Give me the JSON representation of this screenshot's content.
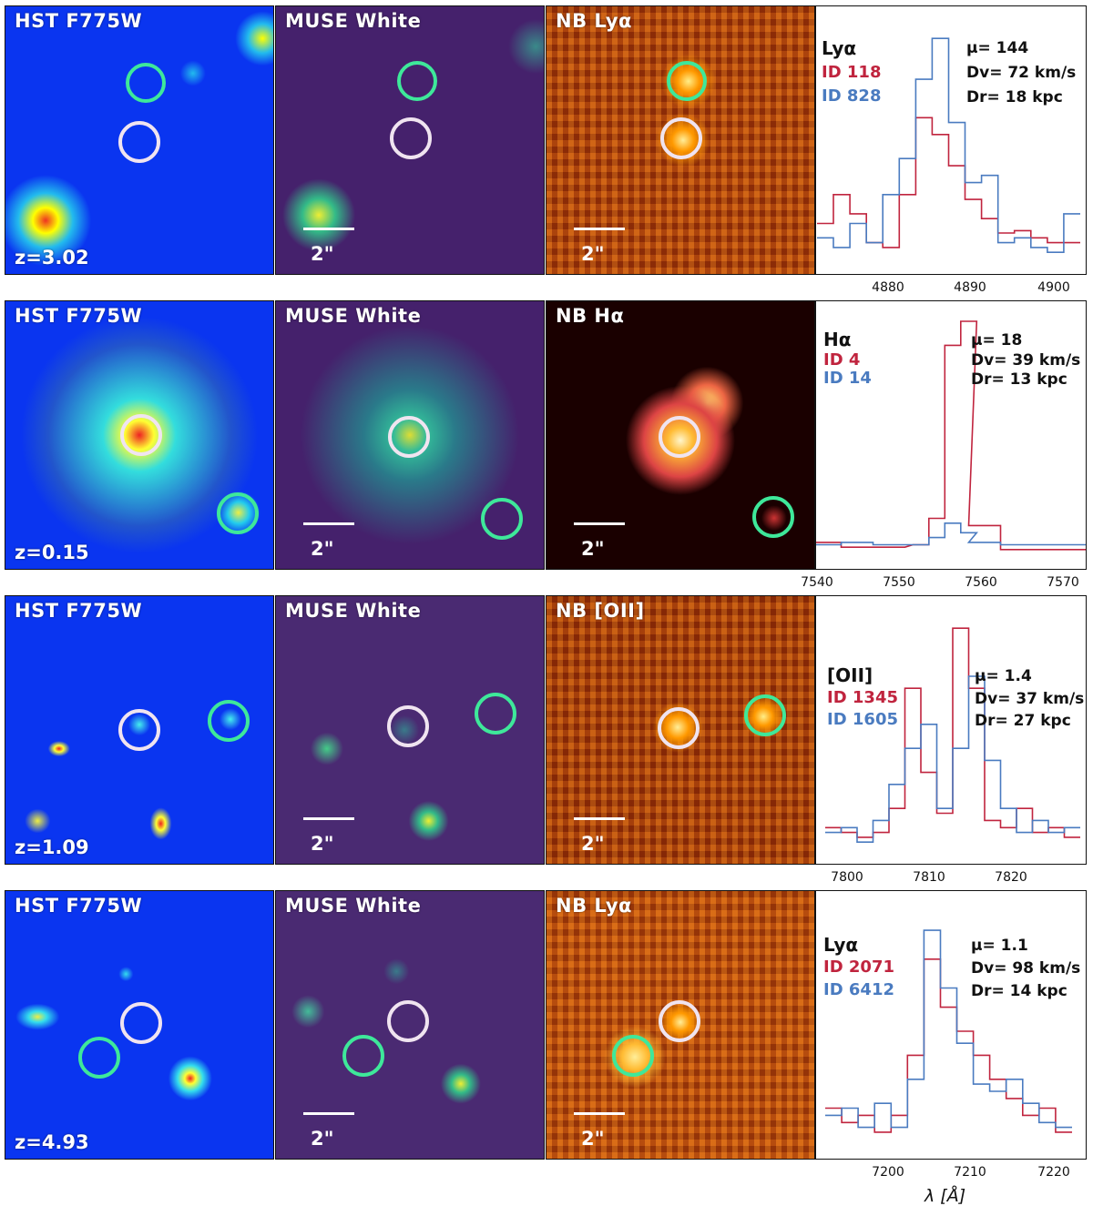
{
  "rows": [
    {
      "hst_label": "HST F775W",
      "muse_label": "MUSE White",
      "nb_label": "NB Lyα",
      "z": "z=3.02",
      "scale": "2\"",
      "line": "Lyα",
      "id_a": "ID 118",
      "id_b": "ID 828",
      "mu": "μ= 144",
      "dv": "Dv= 72 km/s",
      "dr": "Dr= 18 kpc",
      "ticks": [
        "4880",
        "4890",
        "4900"
      ]
    },
    {
      "hst_label": "HST F775W",
      "muse_label": "MUSE White",
      "nb_label": "NB Hα",
      "z": "z=0.15",
      "scale": "2\"",
      "line": "Hα",
      "id_a": "ID 4",
      "id_b": "ID 14",
      "mu": "μ= 18",
      "dv": "Dv= 39 km/s",
      "dr": "Dr= 13 kpc",
      "ticks": [
        "7540",
        "7550",
        "7560",
        "7570"
      ]
    },
    {
      "hst_label": "HST F775W",
      "muse_label": "MUSE White",
      "nb_label": "NB [OII]",
      "z": "z=1.09",
      "scale": "2\"",
      "line": "[OII]",
      "id_a": "ID 1345",
      "id_b": "ID 1605",
      "mu": "μ= 1.4",
      "dv": "Dv= 37 km/s",
      "dr": "Dr= 27 kpc",
      "ticks": [
        "7800",
        "7810",
        "7820"
      ]
    },
    {
      "hst_label": "HST F775W",
      "muse_label": "MUSE White",
      "nb_label": "NB Lyα",
      "z": "z=4.93",
      "scale": "2\"",
      "line": "Lyα",
      "id_a": "ID 2071",
      "id_b": "ID 6412",
      "mu": "μ= 1.1",
      "dv": "Dv= 98 km/s",
      "dr": "Dr= 14 kpc",
      "ticks": [
        "7200",
        "7210",
        "7220"
      ]
    }
  ],
  "xlabel": "λ [Å]",
  "colors": {
    "id_a": "#c0243e",
    "id_b": "#4a7bc0",
    "circle_a": "#f0e4f0",
    "circle_b": "#3ee89a"
  },
  "chart_data": [
    {
      "type": "line",
      "title": "Lyα ID 118 / ID 828",
      "xlabel": "λ [Å]",
      "xlim": [
        4873,
        4904
      ],
      "series": [
        {
          "name": "ID 118",
          "x": [
            4873,
            4875,
            4877,
            4879,
            4881,
            4883,
            4885,
            4887,
            4889,
            4891,
            4893,
            4895,
            4897,
            4899,
            4901,
            4903
          ],
          "values": [
            0.18,
            0.3,
            0.22,
            0.1,
            0.08,
            0.3,
            0.62,
            0.55,
            0.42,
            0.28,
            0.2,
            0.14,
            0.15,
            0.12,
            0.1,
            0.1
          ]
        },
        {
          "name": "ID 828",
          "x": [
            4873,
            4875,
            4877,
            4879,
            4881,
            4883,
            4885,
            4887,
            4889,
            4891,
            4893,
            4895,
            4897,
            4899,
            4901,
            4903
          ],
          "values": [
            0.12,
            0.08,
            0.18,
            0.1,
            0.3,
            0.45,
            0.78,
            0.95,
            0.6,
            0.35,
            0.38,
            0.1,
            0.12,
            0.08,
            0.06,
            0.22
          ]
        }
      ]
    },
    {
      "type": "line",
      "title": "Hα ID 4 / ID 14",
      "xlabel": "λ [Å]",
      "xlim": [
        7540,
        7572
      ],
      "series": [
        {
          "name": "ID 4",
          "x": [
            7540,
            7544,
            7548,
            7552,
            7554,
            7556,
            7558,
            7560,
            7564,
            7568,
            7572
          ],
          "values": [
            0.08,
            0.06,
            0.06,
            0.07,
            0.18,
            0.9,
            1.0,
            0.15,
            0.05,
            0.05,
            0.05
          ]
        },
        {
          "name": "ID 14",
          "x": [
            7540,
            7544,
            7548,
            7552,
            7554,
            7556,
            7558,
            7560,
            7564,
            7568,
            7572
          ],
          "values": [
            0.07,
            0.08,
            0.07,
            0.07,
            0.1,
            0.16,
            0.12,
            0.08,
            0.07,
            0.07,
            0.07
          ]
        }
      ]
    },
    {
      "type": "line",
      "title": "[OII] ID 1345 / ID 1605",
      "xlabel": "λ [Å]",
      "xlim": [
        7796,
        7828
      ],
      "series": [
        {
          "name": "ID 1345",
          "x": [
            7797,
            7799,
            7801,
            7803,
            7805,
            7807,
            7809,
            7811,
            7813,
            7815,
            7817,
            7819,
            7821,
            7823,
            7825,
            7827
          ],
          "values": [
            0.12,
            0.1,
            0.08,
            0.1,
            0.2,
            0.7,
            0.35,
            0.18,
            0.95,
            0.7,
            0.15,
            0.12,
            0.2,
            0.1,
            0.12,
            0.08
          ]
        },
        {
          "name": "ID 1605",
          "x": [
            7797,
            7799,
            7801,
            7803,
            7805,
            7807,
            7809,
            7811,
            7813,
            7815,
            7817,
            7819,
            7821,
            7823,
            7825,
            7827
          ],
          "values": [
            0.1,
            0.12,
            0.06,
            0.15,
            0.3,
            0.45,
            0.55,
            0.2,
            0.45,
            0.75,
            0.4,
            0.2,
            0.1,
            0.15,
            0.1,
            0.12
          ]
        }
      ]
    },
    {
      "type": "line",
      "title": "Lyα ID 2071 / ID 6412",
      "xlabel": "λ [Å]",
      "xlim": [
        7193,
        7224
      ],
      "series": [
        {
          "name": "ID 2071",
          "x": [
            7194,
            7196,
            7198,
            7200,
            7202,
            7204,
            7206,
            7208,
            7210,
            7212,
            7214,
            7216,
            7218,
            7220,
            7222
          ],
          "values": [
            0.18,
            0.12,
            0.15,
            0.08,
            0.15,
            0.4,
            0.8,
            0.6,
            0.5,
            0.4,
            0.3,
            0.22,
            0.15,
            0.18,
            0.08
          ]
        },
        {
          "name": "ID 6412",
          "x": [
            7194,
            7196,
            7198,
            7200,
            7202,
            7204,
            7206,
            7208,
            7210,
            7212,
            7214,
            7216,
            7218,
            7220,
            7222
          ],
          "values": [
            0.15,
            0.18,
            0.1,
            0.2,
            0.1,
            0.3,
            0.92,
            0.68,
            0.45,
            0.28,
            0.25,
            0.3,
            0.2,
            0.12,
            0.1
          ]
        }
      ]
    }
  ]
}
